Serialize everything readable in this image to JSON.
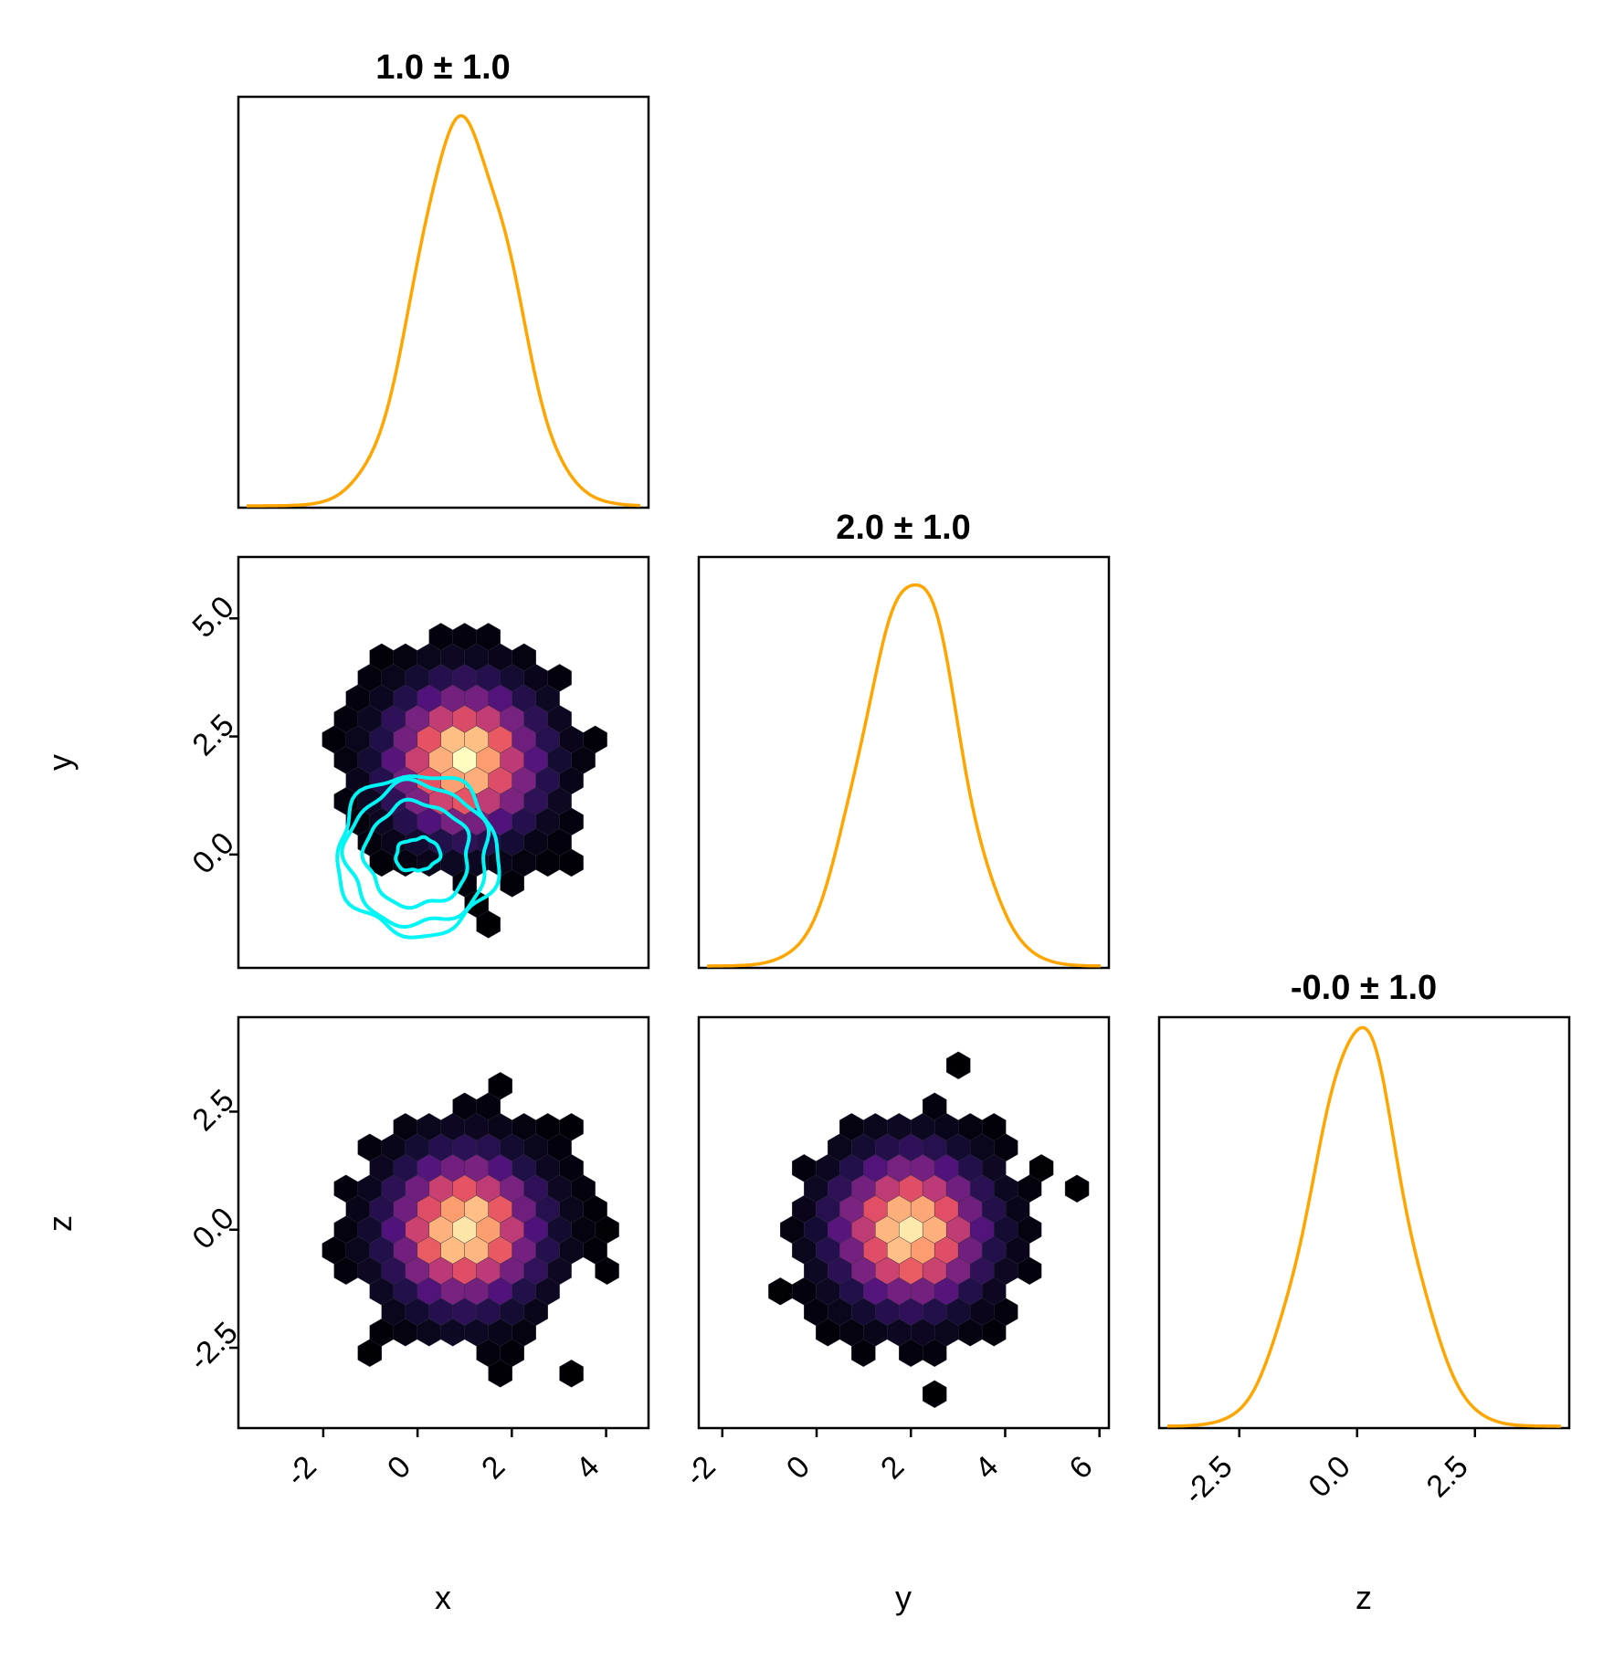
{
  "chart_data": {
    "type": "corner",
    "variables": [
      "x",
      "y",
      "z"
    ],
    "marginal_titles": {
      "x": "1.0 ± 1.0",
      "y": "2.0 ± 1.0",
      "z": "-0.0 ± 1.0"
    },
    "axis_ranges": {
      "x": [
        -3.8,
        4.9
      ],
      "y": [
        -2.5,
        6.2
      ],
      "y_as_row": [
        -2.4,
        6.3
      ],
      "z": [
        -4.2,
        4.5
      ]
    },
    "ticks": {
      "x": {
        "values": [
          -2,
          0,
          2,
          4
        ],
        "labels": [
          "-2",
          "0",
          "2",
          "4"
        ]
      },
      "y": {
        "values": [
          -2,
          0,
          2,
          4,
          6
        ],
        "labels": [
          "-2",
          "0",
          "2",
          "4",
          "6"
        ]
      },
      "y_row": {
        "values": [
          0.0,
          2.5,
          5.0
        ],
        "labels": [
          "0.0",
          "2.5",
          "5.0"
        ]
      },
      "z": {
        "values": [
          -2.5,
          0.0,
          2.5
        ],
        "labels": [
          "-2.5",
          "0.0",
          "2.5"
        ]
      }
    },
    "marginals": [
      {
        "variable": "x",
        "type": "density",
        "mean": 1.0,
        "std": 1.0,
        "color": "#FFA500"
      },
      {
        "variable": "y",
        "type": "density",
        "mean": 2.0,
        "std": 1.0,
        "color": "#FFA500"
      },
      {
        "variable": "z",
        "type": "density",
        "mean": 0.0,
        "std": 1.0,
        "color": "#FFA500"
      }
    ],
    "joints": [
      {
        "x": "x",
        "y": "y",
        "type": "hexbin",
        "center": [
          1.0,
          2.0
        ],
        "std": [
          1.0,
          1.0
        ],
        "colormap": "magma",
        "overlay_contours": {
          "color": "#00F5F5",
          "center": [
            0.0,
            0.0
          ],
          "levels_sigma": [
            0.4,
            1.1,
            1.5,
            1.7
          ]
        }
      },
      {
        "x": "x",
        "y": "z",
        "type": "hexbin",
        "center": [
          1.0,
          0.0
        ],
        "std": [
          1.0,
          1.0
        ],
        "colormap": "magma"
      },
      {
        "x": "y",
        "y": "z",
        "type": "hexbin",
        "center": [
          2.0,
          0.0
        ],
        "std": [
          1.0,
          1.0
        ],
        "colormap": "magma"
      }
    ],
    "grid": false,
    "legend": "none"
  }
}
